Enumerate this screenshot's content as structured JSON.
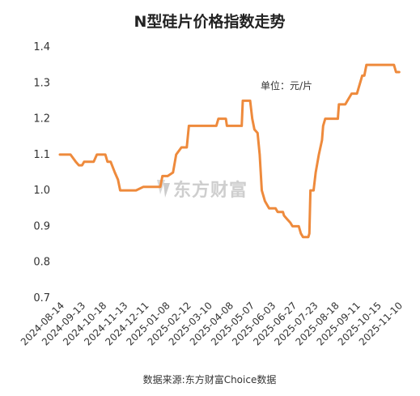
{
  "chart_data": {
    "type": "line",
    "title": "N型硅片价格指数走势",
    "unit_label": "单位：元/片",
    "source": "数据来源:东方财富Choice数据",
    "watermark": "东方财富",
    "xlabel": "",
    "ylabel": "",
    "ylim": [
      0.7,
      1.4
    ],
    "yticks": [
      "0.7",
      "0.8",
      "0.9",
      "1.0",
      "1.1",
      "1.2",
      "1.3",
      "1.4"
    ],
    "grid": false,
    "line_color": "#ee8a3c",
    "x_ticks": [
      "2024-08-14",
      "2024-09-13",
      "2024-10-18",
      "2024-11-13",
      "2024-12-11",
      "2025-01-08",
      "2025-02-12",
      "2025-03-10",
      "2025-04-08",
      "2025-05-07",
      "2025-06-03",
      "2025-06-27",
      "2025-07-23",
      "2025-08-18",
      "2025-09-11",
      "2025-10-15",
      "2025-11-10"
    ],
    "series": [
      {
        "name": "",
        "values": [
          [
            0,
            1.1
          ],
          [
            0.5,
            1.1
          ],
          [
            0.75,
            1.08
          ],
          [
            0.9,
            1.07
          ],
          [
            1.05,
            1.07
          ],
          [
            1.15,
            1.08
          ],
          [
            1.4,
            1.08
          ],
          [
            1.6,
            1.08
          ],
          [
            1.75,
            1.1
          ],
          [
            1.95,
            1.1
          ],
          [
            2.15,
            1.1
          ],
          [
            2.25,
            1.08
          ],
          [
            2.4,
            1.08
          ],
          [
            2.6,
            1.05
          ],
          [
            2.75,
            1.03
          ],
          [
            2.85,
            1.0
          ],
          [
            3.2,
            1.0
          ],
          [
            3.6,
            1.0
          ],
          [
            3.95,
            1.01
          ],
          [
            4.3,
            1.01
          ],
          [
            4.6,
            1.01
          ],
          [
            4.75,
            1.01
          ],
          [
            4.85,
            1.04
          ],
          [
            5.1,
            1.04
          ],
          [
            5.35,
            1.05
          ],
          [
            5.5,
            1.1
          ],
          [
            5.75,
            1.12
          ],
          [
            6.0,
            1.12
          ],
          [
            6.1,
            1.18
          ],
          [
            6.4,
            1.18
          ],
          [
            6.9,
            1.18
          ],
          [
            7.4,
            1.18
          ],
          [
            7.5,
            1.2
          ],
          [
            7.85,
            1.2
          ],
          [
            7.9,
            1.18
          ],
          [
            8.3,
            1.18
          ],
          [
            8.6,
            1.18
          ],
          [
            8.65,
            1.25
          ],
          [
            9.0,
            1.25
          ],
          [
            9.1,
            1.2
          ],
          [
            9.2,
            1.17
          ],
          [
            9.35,
            1.16
          ],
          [
            9.45,
            1.1
          ],
          [
            9.55,
            1.0
          ],
          [
            9.7,
            0.97
          ],
          [
            9.8,
            0.96
          ],
          [
            9.9,
            0.95
          ],
          [
            10.2,
            0.95
          ],
          [
            10.3,
            0.94
          ],
          [
            10.55,
            0.94
          ],
          [
            10.6,
            0.93
          ],
          [
            10.75,
            0.92
          ],
          [
            10.9,
            0.91
          ],
          [
            11.0,
            0.9
          ],
          [
            11.3,
            0.9
          ],
          [
            11.4,
            0.88
          ],
          [
            11.5,
            0.87
          ],
          [
            11.75,
            0.87
          ],
          [
            11.8,
            0.88
          ],
          [
            11.85,
            1.0
          ],
          [
            12.0,
            1.0
          ],
          [
            12.1,
            1.05
          ],
          [
            12.25,
            1.1
          ],
          [
            12.4,
            1.14
          ],
          [
            12.45,
            1.18
          ],
          [
            12.55,
            1.2
          ],
          [
            12.8,
            1.2
          ],
          [
            13.05,
            1.2
          ],
          [
            13.15,
            1.2
          ],
          [
            13.2,
            1.24
          ],
          [
            13.5,
            1.24
          ],
          [
            13.6,
            1.25
          ],
          [
            13.8,
            1.27
          ],
          [
            14.05,
            1.27
          ],
          [
            14.2,
            1.3
          ],
          [
            14.3,
            1.32
          ],
          [
            14.4,
            1.32
          ],
          [
            14.5,
            1.35
          ],
          [
            14.75,
            1.35
          ],
          [
            15.0,
            1.35
          ],
          [
            15.5,
            1.35
          ],
          [
            15.8,
            1.35
          ],
          [
            15.9,
            1.33
          ],
          [
            16.05,
            1.33
          ]
        ]
      }
    ]
  }
}
